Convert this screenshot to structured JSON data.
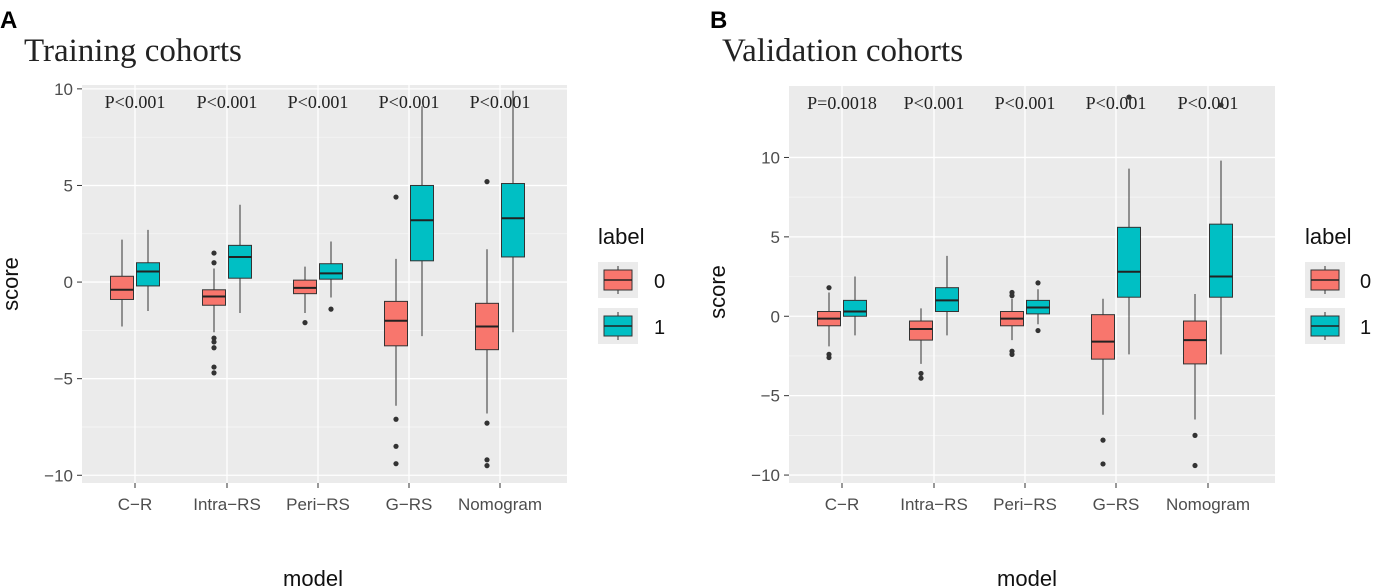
{
  "figure": {
    "panels": [
      "A",
      "B"
    ],
    "legend": {
      "title": "label",
      "entries": [
        "0",
        "1"
      ],
      "colors": [
        "#F8766D",
        "#00BFC4"
      ]
    }
  },
  "chart_data": [
    {
      "type": "box",
      "panel": "A",
      "title": "Training cohorts",
      "xlabel": "model",
      "ylabel": "score",
      "ylim": [
        -10.4,
        10.2
      ],
      "yticks": [
        -10,
        -5,
        0,
        5,
        10
      ],
      "yticklabels": [
        "−10",
        "−5",
        "0",
        "5",
        "10"
      ],
      "categories": [
        "C−R",
        "Intra−RS",
        "Peri−RS",
        "G−RS",
        "Nomogram"
      ],
      "pvalues": [
        "P<0.001",
        "P<0.001",
        "P<0.001",
        "P<0.001",
        "P<0.001"
      ],
      "series": [
        {
          "name": "0",
          "color": "#F8766D",
          "boxes": [
            {
              "whisker_low": -2.3,
              "q1": -0.9,
              "median": -0.4,
              "q3": 0.3,
              "whisker_high": 2.2,
              "outliers": []
            },
            {
              "whisker_low": -2.6,
              "q1": -1.2,
              "median": -0.75,
              "q3": -0.4,
              "whisker_high": 0.7,
              "outliers": [
                1.5,
                1.0,
                -2.9,
                -3.1,
                -3.4,
                -4.4,
                -4.7
              ]
            },
            {
              "whisker_low": -1.6,
              "q1": -0.6,
              "median": -0.3,
              "q3": 0.1,
              "whisker_high": 0.8,
              "outliers": [
                -2.1
              ]
            },
            {
              "whisker_low": -6.4,
              "q1": -3.3,
              "median": -2.0,
              "q3": -1.0,
              "whisker_high": 1.2,
              "outliers": [
                4.4,
                -7.1,
                -8.5,
                -9.4
              ]
            },
            {
              "whisker_low": -6.8,
              "q1": -3.5,
              "median": -2.3,
              "q3": -1.1,
              "whisker_high": 1.7,
              "outliers": [
                5.2,
                -7.3,
                -9.2,
                -9.5
              ]
            }
          ]
        },
        {
          "name": "1",
          "color": "#00BFC4",
          "boxes": [
            {
              "whisker_low": -1.5,
              "q1": -0.2,
              "median": 0.55,
              "q3": 1.0,
              "whisker_high": 2.7,
              "outliers": []
            },
            {
              "whisker_low": -1.6,
              "q1": 0.2,
              "median": 1.3,
              "q3": 1.9,
              "whisker_high": 4.0,
              "outliers": []
            },
            {
              "whisker_low": -0.8,
              "q1": 0.15,
              "median": 0.45,
              "q3": 0.95,
              "whisker_high": 2.1,
              "outliers": [
                -1.4
              ]
            },
            {
              "whisker_low": -2.8,
              "q1": 1.1,
              "median": 3.2,
              "q3": 5.0,
              "whisker_high": 9.1,
              "outliers": []
            },
            {
              "whisker_low": -2.6,
              "q1": 1.3,
              "median": 3.3,
              "q3": 5.1,
              "whisker_high": 9.9,
              "outliers": []
            }
          ]
        }
      ]
    },
    {
      "type": "box",
      "panel": "B",
      "title": "Validation cohorts",
      "xlabel": "model",
      "ylabel": "score",
      "ylim": [
        -10.5,
        14.5
      ],
      "yticks": [
        -10,
        -5,
        0,
        5,
        10
      ],
      "yticklabels": [
        "−10",
        "−5",
        "0",
        "5",
        "10"
      ],
      "categories": [
        "C−R",
        "Intra−RS",
        "Peri−RS",
        "G−RS",
        "Nomogram"
      ],
      "pvalues": [
        "P=0.0018",
        "P<0.001",
        "P<0.001",
        "P<0.001",
        "P<0.001"
      ],
      "series": [
        {
          "name": "0",
          "color": "#F8766D",
          "boxes": [
            {
              "whisker_low": -1.9,
              "q1": -0.6,
              "median": -0.15,
              "q3": 0.3,
              "whisker_high": 1.5,
              "outliers": [
                1.8,
                -2.4,
                -2.6
              ]
            },
            {
              "whisker_low": -3.0,
              "q1": -1.5,
              "median": -0.8,
              "q3": -0.3,
              "whisker_high": 0.5,
              "outliers": [
                -3.6,
                -3.9
              ]
            },
            {
              "whisker_low": -1.5,
              "q1": -0.6,
              "median": -0.15,
              "q3": 0.3,
              "whisker_high": 1.1,
              "outliers": [
                1.5,
                1.3,
                -2.2,
                -2.4
              ]
            },
            {
              "whisker_low": -6.2,
              "q1": -2.7,
              "median": -1.6,
              "q3": 0.1,
              "whisker_high": 1.1,
              "outliers": [
                -7.8,
                -9.3
              ]
            },
            {
              "whisker_low": -6.5,
              "q1": -3.0,
              "median": -1.5,
              "q3": -0.3,
              "whisker_high": 1.4,
              "outliers": [
                -7.5,
                -9.4
              ]
            }
          ]
        },
        {
          "name": "1",
          "color": "#00BFC4",
          "boxes": [
            {
              "whisker_low": -1.2,
              "q1": 0.0,
              "median": 0.3,
              "q3": 1.0,
              "whisker_high": 2.5,
              "outliers": []
            },
            {
              "whisker_low": -1.2,
              "q1": 0.3,
              "median": 1.0,
              "q3": 1.8,
              "whisker_high": 3.8,
              "outliers": []
            },
            {
              "whisker_low": -0.5,
              "q1": 0.15,
              "median": 0.55,
              "q3": 1.0,
              "whisker_high": 1.7,
              "outliers": [
                2.1,
                -0.9
              ]
            },
            {
              "whisker_low": -2.4,
              "q1": 1.2,
              "median": 2.8,
              "q3": 5.6,
              "whisker_high": 9.3,
              "outliers": [
                13.8
              ]
            },
            {
              "whisker_low": -2.4,
              "q1": 1.2,
              "median": 2.5,
              "q3": 5.8,
              "whisker_high": 9.8,
              "outliers": [
                13.3
              ]
            }
          ]
        }
      ]
    }
  ]
}
